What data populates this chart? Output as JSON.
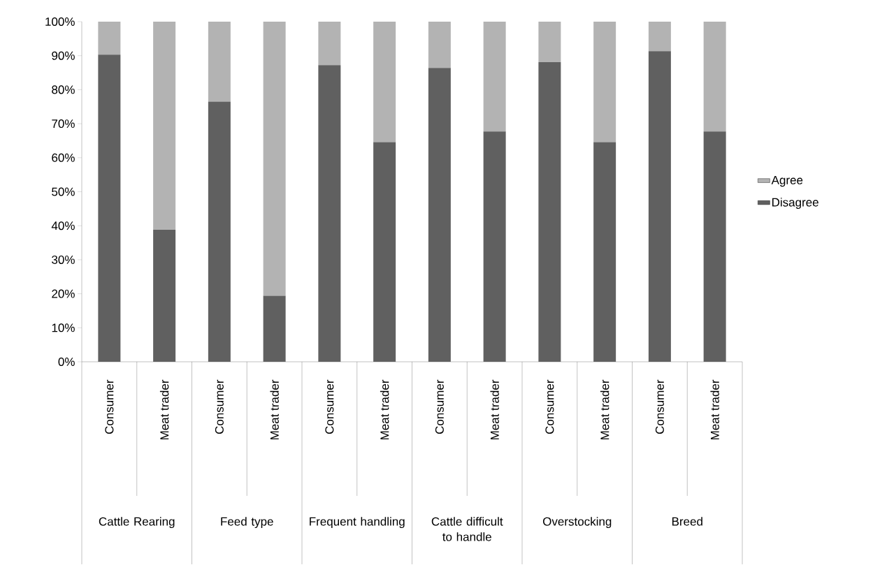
{
  "chart_data": {
    "type": "bar",
    "stacked": true,
    "categories": [
      "Consumer",
      "Meat trader",
      "Consumer",
      "Meat trader",
      "Consumer",
      "Meat trader",
      "Consumer",
      "Meat trader",
      "Consumer",
      "Meat trader",
      "Consumer",
      "Meat trader"
    ],
    "series": [
      {
        "name": "Disagree",
        "color": "#606060",
        "values": [
          90.3,
          38.8,
          76.5,
          19.4,
          87.2,
          64.6,
          86.4,
          67.7,
          88.1,
          64.6,
          91.3,
          67.7
        ]
      },
      {
        "name": "Agree",
        "color": "#b3b3b3",
        "values": [
          9.7,
          61.2,
          23.5,
          80.6,
          12.8,
          35.4,
          13.6,
          32.3,
          11.9,
          35.4,
          8.7,
          32.3
        ]
      }
    ],
    "annotations": [
      "Cattle Rearing",
      "Feed type",
      "Frequent handling",
      "Cattle difficult to handle",
      "Overstocking",
      "Breed"
    ],
    "ylim": [
      0,
      100
    ],
    "yticks": [
      {
        "value": 0,
        "label": "0%"
      },
      {
        "value": 10,
        "label": "10%"
      },
      {
        "value": 20,
        "label": "20%"
      },
      {
        "value": 30,
        "label": "30%"
      },
      {
        "value": 40,
        "label": "40%"
      },
      {
        "value": 50,
        "label": "50%"
      },
      {
        "value": 60,
        "label": "60%"
      },
      {
        "value": 70,
        "label": "70%"
      },
      {
        "value": 80,
        "label": "80%"
      },
      {
        "value": 90,
        "label": "90%"
      },
      {
        "value": 100,
        "label": "100%"
      }
    ],
    "legend": "right"
  }
}
